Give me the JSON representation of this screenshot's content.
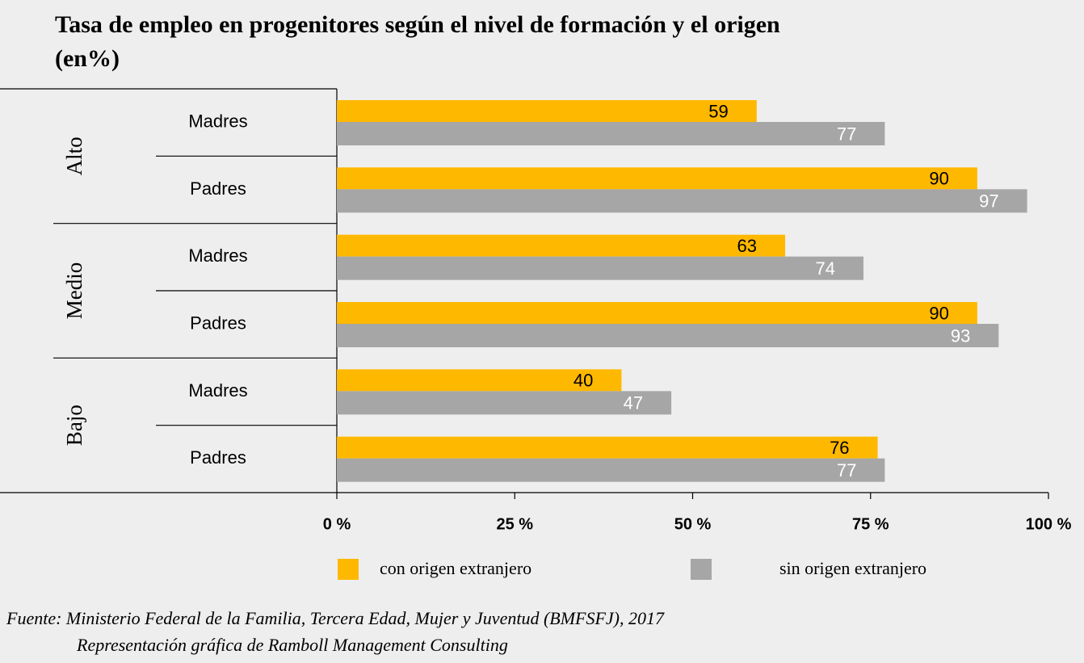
{
  "chart_data": {
    "type": "bar",
    "title": "Tasa de empleo en progenitores  según el nivel de formación y el origen",
    "subtitle": "(en%)",
    "groups": [
      "Alto",
      "Medio",
      "Bajo"
    ],
    "categories": [
      "Madres",
      "Padres",
      "Madres",
      "Padres",
      "Madres",
      "Padres"
    ],
    "series": [
      {
        "name": "con origen extranjero",
        "color": "#FFB800",
        "values": [
          59,
          90,
          63,
          90,
          40,
          76
        ]
      },
      {
        "name": "sin origen extranjero",
        "color": "#A6A6A6",
        "values": [
          77,
          97,
          74,
          93,
          47,
          77
        ]
      }
    ],
    "xlim": [
      0,
      100
    ],
    "xticks": [
      {
        "value": 0,
        "label": "0 %"
      },
      {
        "value": 25,
        "label": "25 %"
      },
      {
        "value": 50,
        "label": "50 %"
      },
      {
        "value": 75,
        "label": "75 %"
      },
      {
        "value": 100,
        "label": "100 %"
      }
    ],
    "legend": "bottom",
    "source": [
      "Fuente: Ministerio Federal de la Familia, Tercera Edad, Mujer y Juventud (BMFSFJ), 2017",
      "Representación gráfica  de Ramboll Management Consulting"
    ]
  }
}
